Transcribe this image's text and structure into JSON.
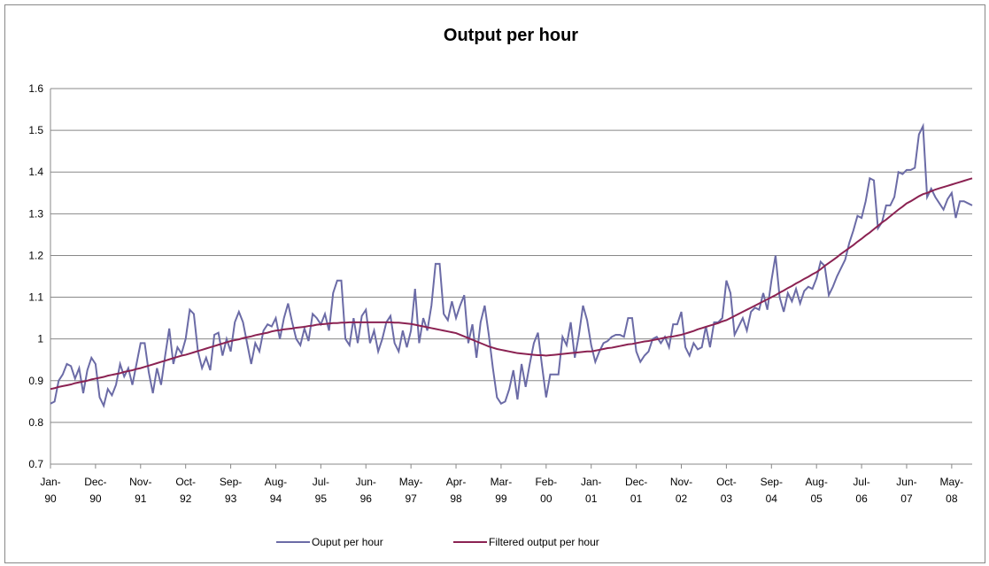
{
  "chart_data": {
    "type": "line",
    "title": "Output per hour",
    "categories": [
      "Jan-90",
      null,
      null,
      null,
      null,
      null,
      null,
      null,
      null,
      null,
      null,
      "Dec-90",
      null,
      null,
      null,
      null,
      null,
      null,
      null,
      null,
      null,
      null,
      "Nov-91",
      null,
      null,
      null,
      null,
      null,
      null,
      null,
      null,
      null,
      null,
      "Oct-92",
      null,
      null,
      null,
      null,
      null,
      null,
      null,
      null,
      null,
      null,
      "Sep-93",
      null,
      null,
      null,
      null,
      null,
      null,
      null,
      null,
      null,
      null,
      "Aug-94",
      null,
      null,
      null,
      null,
      null,
      null,
      null,
      null,
      null,
      null,
      "Jul-95",
      null,
      null,
      null,
      null,
      null,
      null,
      null,
      null,
      null,
      null,
      "Jun-96",
      null,
      null,
      null,
      null,
      null,
      null,
      null,
      null,
      null,
      null,
      "May-97",
      null,
      null,
      null,
      null,
      null,
      null,
      null,
      null,
      null,
      null,
      "Apr-98",
      null,
      null,
      null,
      null,
      null,
      null,
      null,
      null,
      null,
      null,
      "Mar-99",
      null,
      null,
      null,
      null,
      null,
      null,
      null,
      null,
      null,
      null,
      "Feb-00",
      null,
      null,
      null,
      null,
      null,
      null,
      null,
      null,
      null,
      null,
      "Jan-01",
      null,
      null,
      null,
      null,
      null,
      null,
      null,
      null,
      null,
      null,
      "Dec-01",
      null,
      null,
      null,
      null,
      null,
      null,
      null,
      null,
      null,
      null,
      "Nov-02",
      null,
      null,
      null,
      null,
      null,
      null,
      null,
      null,
      null,
      null,
      "Oct-03",
      null,
      null,
      null,
      null,
      null,
      null,
      null,
      null,
      null,
      null,
      "Sep-04",
      null,
      null,
      null,
      null,
      null,
      null,
      null,
      null,
      null,
      null,
      "Aug-05",
      null,
      null,
      null,
      null,
      null,
      null,
      null,
      null,
      null,
      null,
      "Jul-06",
      null,
      null,
      null,
      null,
      null,
      null,
      null,
      null,
      null,
      null,
      "Jun-07",
      null,
      null,
      null,
      null,
      null,
      null,
      null,
      null,
      null,
      null,
      "May-08",
      null,
      null,
      null,
      null,
      null
    ],
    "series": [
      {
        "name": "Ouput per hour",
        "color": "#6b6ba6",
        "values": [
          0.845,
          0.85,
          0.9,
          0.915,
          0.94,
          0.935,
          0.905,
          0.93,
          0.87,
          0.925,
          0.955,
          0.94,
          0.86,
          0.84,
          0.88,
          0.865,
          0.89,
          0.94,
          0.91,
          0.93,
          0.89,
          0.94,
          0.99,
          0.99,
          0.92,
          0.87,
          0.93,
          0.89,
          0.96,
          1.025,
          0.94,
          0.98,
          0.965,
          1.0,
          1.07,
          1.06,
          0.97,
          0.93,
          0.955,
          0.925,
          1.01,
          1.015,
          0.96,
          1.0,
          0.97,
          1.04,
          1.065,
          1.04,
          0.99,
          0.94,
          0.99,
          0.97,
          1.02,
          1.035,
          1.03,
          1.05,
          1.0,
          1.05,
          1.085,
          1.04,
          1.0,
          0.985,
          1.025,
          0.995,
          1.06,
          1.05,
          1.035,
          1.06,
          1.02,
          1.11,
          1.14,
          1.14,
          1.0,
          0.985,
          1.05,
          0.99,
          1.055,
          1.07,
          0.99,
          1.02,
          0.97,
          1.0,
          1.04,
          1.055,
          0.99,
          0.97,
          1.02,
          0.98,
          1.02,
          1.12,
          0.99,
          1.05,
          1.02,
          1.08,
          1.18,
          1.18,
          1.06,
          1.045,
          1.09,
          1.05,
          1.08,
          1.105,
          0.99,
          1.035,
          0.955,
          1.04,
          1.08,
          1.01,
          0.93,
          0.86,
          0.845,
          0.85,
          0.88,
          0.925,
          0.855,
          0.94,
          0.885,
          0.94,
          0.99,
          1.015,
          0.935,
          0.86,
          0.915,
          0.915,
          0.915,
          1.005,
          0.985,
          1.04,
          0.955,
          1.01,
          1.08,
          1.045,
          0.985,
          0.945,
          0.97,
          0.99,
          0.995,
          1.005,
          1.01,
          1.01,
          1.005,
          1.05,
          1.05,
          0.97,
          0.945,
          0.96,
          0.97,
          1.0,
          1.005,
          0.99,
          1.005,
          0.98,
          1.035,
          1.035,
          1.065,
          0.98,
          0.96,
          0.99,
          0.975,
          0.98,
          1.03,
          0.98,
          1.04,
          1.04,
          1.05,
          1.14,
          1.11,
          1.01,
          1.03,
          1.05,
          1.02,
          1.065,
          1.075,
          1.07,
          1.11,
          1.07,
          1.14,
          1.2,
          1.1,
          1.065,
          1.11,
          1.09,
          1.12,
          1.085,
          1.115,
          1.125,
          1.12,
          1.145,
          1.185,
          1.175,
          1.105,
          1.125,
          1.15,
          1.17,
          1.19,
          1.23,
          1.26,
          1.295,
          1.29,
          1.33,
          1.385,
          1.38,
          1.265,
          1.28,
          1.32,
          1.32,
          1.34,
          1.4,
          1.395,
          1.405,
          1.405,
          1.41,
          1.49,
          1.51,
          1.34,
          1.36,
          1.34,
          1.325,
          1.31,
          1.335,
          1.35,
          1.29,
          1.33,
          1.33,
          1.325,
          1.32
        ]
      },
      {
        "name": "Filtered output per hour",
        "color": "#8b2252",
        "values": [
          0.88,
          0.882,
          0.885,
          0.887,
          0.889,
          0.891,
          0.894,
          0.896,
          0.898,
          0.9,
          0.903,
          0.905,
          0.907,
          0.909,
          0.912,
          0.914,
          0.916,
          0.918,
          0.921,
          0.923,
          0.925,
          0.928,
          0.93,
          0.933,
          0.936,
          0.939,
          0.942,
          0.945,
          0.948,
          0.951,
          0.954,
          0.957,
          0.96,
          0.962,
          0.965,
          0.968,
          0.971,
          0.974,
          0.977,
          0.98,
          0.983,
          0.986,
          0.989,
          0.992,
          0.995,
          0.997,
          0.999,
          1.002,
          1.004,
          1.006,
          1.009,
          1.011,
          1.013,
          1.015,
          1.018,
          1.02,
          1.021,
          1.023,
          1.024,
          1.025,
          1.027,
          1.028,
          1.029,
          1.031,
          1.032,
          1.034,
          1.035,
          1.036,
          1.037,
          1.038,
          1.038,
          1.039,
          1.039,
          1.04,
          1.04,
          1.04,
          1.04,
          1.04,
          1.04,
          1.04,
          1.04,
          1.04,
          1.04,
          1.04,
          1.039,
          1.039,
          1.038,
          1.037,
          1.036,
          1.034,
          1.032,
          1.03,
          1.028,
          1.026,
          1.024,
          1.022,
          1.02,
          1.018,
          1.016,
          1.014,
          1.01,
          1.006,
          1.002,
          0.998,
          0.994,
          0.99,
          0.986,
          0.982,
          0.979,
          0.976,
          0.974,
          0.972,
          0.97,
          0.968,
          0.966,
          0.965,
          0.964,
          0.963,
          0.962,
          0.961,
          0.961,
          0.96,
          0.961,
          0.962,
          0.963,
          0.964,
          0.965,
          0.966,
          0.967,
          0.968,
          0.969,
          0.97,
          0.97,
          0.972,
          0.974,
          0.976,
          0.978,
          0.979,
          0.981,
          0.983,
          0.985,
          0.987,
          0.988,
          0.99,
          0.992,
          0.994,
          0.995,
          0.997,
          0.999,
          1.001,
          1.003,
          1.005,
          1.006,
          1.008,
          1.01,
          1.013,
          1.016,
          1.019,
          1.023,
          1.026,
          1.029,
          1.032,
          1.035,
          1.038,
          1.042,
          1.045,
          1.05,
          1.055,
          1.06,
          1.065,
          1.07,
          1.075,
          1.08,
          1.085,
          1.09,
          1.095,
          1.1,
          1.105,
          1.111,
          1.116,
          1.122,
          1.127,
          1.133,
          1.138,
          1.144,
          1.149,
          1.155,
          1.16,
          1.167,
          1.175,
          1.182,
          1.189,
          1.196,
          1.204,
          1.211,
          1.218,
          1.225,
          1.233,
          1.24,
          1.248,
          1.255,
          1.263,
          1.271,
          1.279,
          1.286,
          1.294,
          1.302,
          1.31,
          1.317,
          1.325,
          1.33,
          1.336,
          1.342,
          1.347,
          1.35,
          1.354,
          1.358,
          1.361,
          1.364,
          1.367,
          1.37,
          1.373,
          1.376,
          1.379,
          1.382,
          1.385
        ]
      }
    ],
    "ylim": [
      0.7,
      1.6
    ],
    "yticks": [
      0.7,
      0.8,
      0.9,
      1,
      1.1,
      1.2,
      1.3,
      1.4,
      1.5,
      1.6
    ],
    "grid": true,
    "legend": "bottom"
  }
}
